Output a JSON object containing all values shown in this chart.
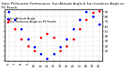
{
  "title": "Solar PV/Inverter Performance  Sun Altitude Angle & Sun Incidence Angle on PV Panels",
  "background_color": "#ffffff",
  "grid_color": "#999999",
  "blue_label": "Sun Altitude Angle",
  "red_label": "Sun Incidence Angle on PV Panels",
  "x_values": [
    6,
    7,
    8,
    9,
    10,
    11,
    12,
    13,
    14,
    15,
    16,
    17,
    18,
    19,
    20
  ],
  "blue_y": [
    90,
    75,
    55,
    35,
    18,
    5,
    -5,
    5,
    18,
    35,
    55,
    75,
    90,
    80,
    65
  ],
  "red_y": [
    75,
    55,
    35,
    20,
    10,
    38,
    45,
    38,
    10,
    20,
    35,
    55,
    75,
    88,
    92
  ],
  "x_tick_labels": [
    "6",
    "7",
    "8",
    "9",
    "10",
    "11",
    "12",
    "13",
    "14",
    "15",
    "16",
    "17",
    "18",
    "19",
    "20"
  ],
  "ylim": [
    -10,
    95
  ],
  "yticks_right": [
    10,
    20,
    30,
    40,
    50,
    60,
    70,
    80,
    90
  ],
  "dot_size": 1.2,
  "title_fontsize": 3.0,
  "tick_fontsize": 2.8,
  "legend_fontsize": 2.5
}
